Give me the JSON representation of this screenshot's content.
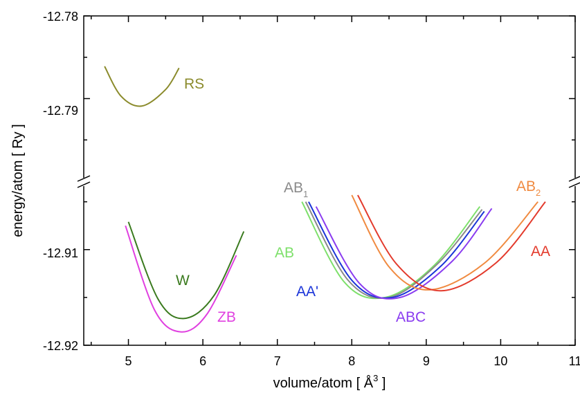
{
  "chart_data": {
    "type": "line",
    "xlabel": "volume/atom  [ Å",
    "xlabel_sup": "3",
    "xlabel_end": " ]",
    "ylabel": "energy/atom  [ Ry ]",
    "x_range": [
      4.4,
      11
    ],
    "y_upper_range": [
      -12.78,
      -12.8
    ],
    "y_lower_range": [
      -12.903,
      -12.92
    ],
    "y_axis_break": true,
    "x_ticks": [
      "5",
      "6",
      "7",
      "8",
      "9",
      "10",
      "11"
    ],
    "y_ticks_upper": [
      "-12.78",
      "-12.79"
    ],
    "y_ticks_lower": [
      "-12.91",
      "-12.92"
    ],
    "series": [
      {
        "name": "RS",
        "color": "#8b8b2c",
        "panel": "upper",
        "x": [
          4.68,
          4.9,
          5.18,
          5.5,
          5.68
        ],
        "y": [
          -12.7861,
          -12.7897,
          -12.7909,
          -12.7889,
          -12.7863
        ]
      },
      {
        "name": "W",
        "color": "#3a7a1e",
        "panel": "lower",
        "x": [
          5.0,
          5.4,
          5.75,
          6.15,
          6.55
        ],
        "y": [
          -12.9071,
          -12.9152,
          -12.9172,
          -12.9148,
          -12.9081
        ]
      },
      {
        "name": "ZB",
        "color": "#e040e0",
        "panel": "lower",
        "x": [
          4.96,
          5.35,
          5.7,
          6.05,
          6.45
        ],
        "y": [
          -12.9075,
          -12.9163,
          -12.9186,
          -12.9168,
          -12.9106
        ]
      },
      {
        "name": "AB",
        "color": "#7de06a",
        "panel": "lower",
        "x": [
          7.33,
          7.9,
          8.45,
          9.1,
          9.72
        ],
        "y": [
          -12.905,
          -12.9134,
          -12.915,
          -12.9117,
          -12.9055
        ]
      },
      {
        "name": "AB_1",
        "label": "AB",
        "label_sub": "1",
        "color": "#8a8a8a",
        "panel": "lower",
        "x": [
          7.38,
          7.95,
          8.5,
          9.15,
          9.75
        ],
        "y": [
          -12.905,
          -12.9132,
          -12.915,
          -12.9115,
          -12.9058
        ]
      },
      {
        "name": "AA'",
        "color": "#1a34d8",
        "panel": "lower",
        "x": [
          7.42,
          8.0,
          8.55,
          9.2,
          9.78
        ],
        "y": [
          -12.905,
          -12.9132,
          -12.915,
          -12.9117,
          -12.906
        ]
      },
      {
        "name": "ABC",
        "color": "#8a3cf0",
        "panel": "lower",
        "x": [
          7.52,
          8.1,
          8.65,
          9.35,
          9.88
        ],
        "y": [
          -12.9055,
          -12.9135,
          -12.915,
          -12.9112,
          -12.9057
        ]
      },
      {
        "name": "AB_2",
        "label": "AB",
        "label_sub": "2",
        "color": "#f08a40",
        "panel": "lower",
        "x": [
          8.0,
          8.5,
          9.05,
          9.8,
          10.5
        ],
        "y": [
          -12.9043,
          -12.9118,
          -12.9142,
          -12.9113,
          -12.905
        ]
      },
      {
        "name": "AA",
        "color": "#e33a2c",
        "panel": "lower",
        "x": [
          8.08,
          8.6,
          9.2,
          9.95,
          10.6
        ],
        "y": [
          -12.9043,
          -12.9115,
          -12.9143,
          -12.9113,
          -12.905
        ]
      }
    ]
  }
}
